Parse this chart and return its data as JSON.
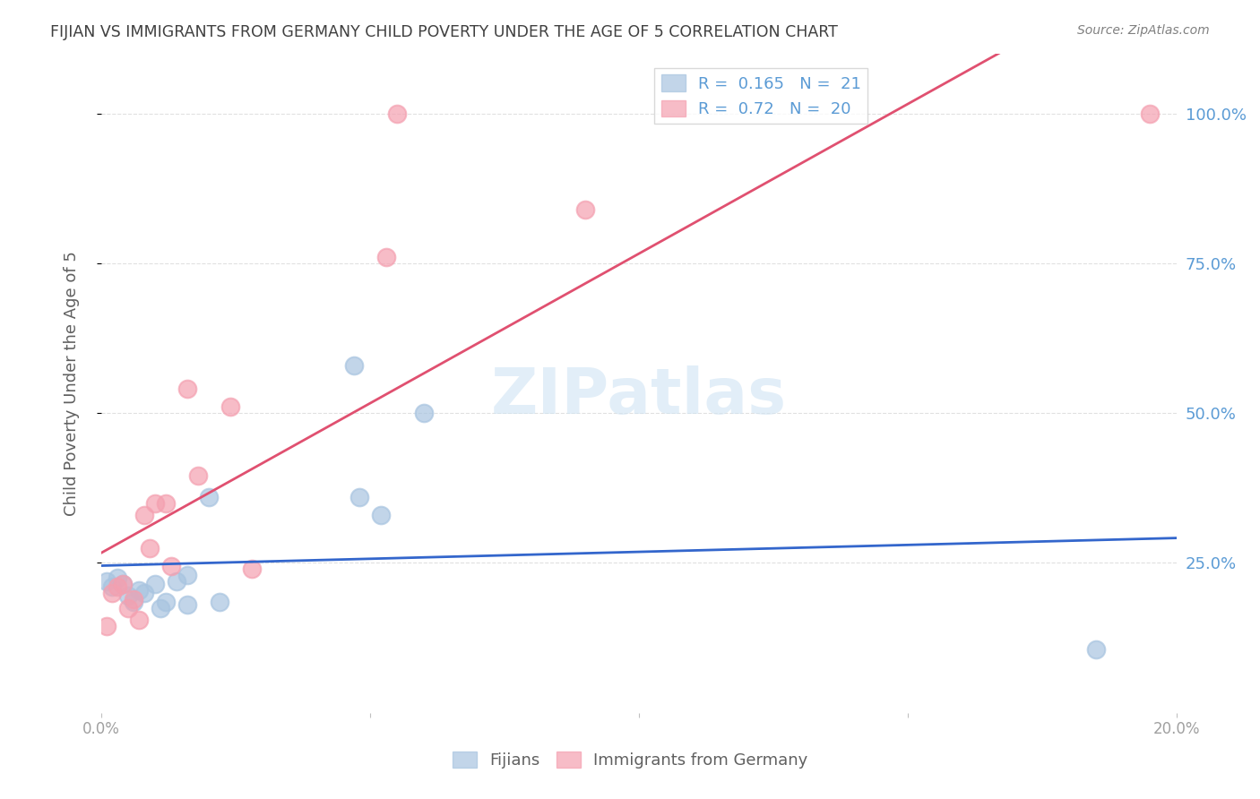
{
  "title": "FIJIAN VS IMMIGRANTS FROM GERMANY CHILD POVERTY UNDER THE AGE OF 5 CORRELATION CHART",
  "source": "Source: ZipAtlas.com",
  "ylabel": "Child Poverty Under the Age of 5",
  "ytick_labels": [
    "100.0%",
    "75.0%",
    "50.0%",
    "25.0%"
  ],
  "ytick_values": [
    1.0,
    0.75,
    0.5,
    0.25
  ],
  "xlim": [
    0.0,
    0.2
  ],
  "ylim": [
    0.0,
    1.1
  ],
  "fijian_R": 0.165,
  "fijian_N": 21,
  "immigrant_R": 0.72,
  "immigrant_N": 20,
  "fijian_color": "#a8c4e0",
  "immigrant_color": "#f4a0b0",
  "trend_fijian_color": "#3366cc",
  "trend_immigrant_color": "#e05070",
  "fijian_x": [
    0.001,
    0.002,
    0.003,
    0.004,
    0.005,
    0.006,
    0.007,
    0.008,
    0.01,
    0.011,
    0.012,
    0.014,
    0.016,
    0.016,
    0.02,
    0.022,
    0.047,
    0.048,
    0.052,
    0.06,
    0.185
  ],
  "fijian_y": [
    0.22,
    0.21,
    0.225,
    0.215,
    0.195,
    0.185,
    0.205,
    0.2,
    0.215,
    0.175,
    0.185,
    0.22,
    0.18,
    0.23,
    0.36,
    0.185,
    0.58,
    0.36,
    0.33,
    0.5,
    0.105
  ],
  "immigrant_x": [
    0.001,
    0.002,
    0.003,
    0.004,
    0.005,
    0.006,
    0.007,
    0.008,
    0.009,
    0.01,
    0.012,
    0.013,
    0.016,
    0.018,
    0.024,
    0.028,
    0.053,
    0.055,
    0.09,
    0.195
  ],
  "immigrant_y": [
    0.145,
    0.2,
    0.21,
    0.215,
    0.175,
    0.19,
    0.155,
    0.33,
    0.275,
    0.35,
    0.35,
    0.245,
    0.54,
    0.395,
    0.51,
    0.24,
    0.76,
    1.0,
    0.84,
    1.0
  ],
  "background_color": "#ffffff",
  "grid_color": "#e0e0e0",
  "title_color": "#404040",
  "axis_label_color": "#5b9bd5"
}
